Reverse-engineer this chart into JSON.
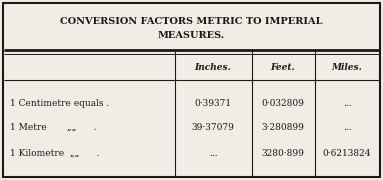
{
  "title_line1": "CONVERSION FACTORS METRIC TO IMPERIAL",
  "title_line2": "MEASURES.",
  "col_headers": [
    "Inches.",
    "Feet.",
    "Miles."
  ],
  "row_labels": [
    "1 Centimetre equals .",
    "1 Metre         „„    .",
    "1 Kilometre    „„    ."
  ],
  "table_data": [
    [
      "0·39371",
      "0·032809",
      "..."
    ],
    [
      "39·37079",
      "3·280899",
      "..."
    ],
    [
      "...",
      "3280·899",
      "0·6213824"
    ]
  ],
  "bg_color": "#f0ede6",
  "border_color": "#1a1a1a",
  "text_color": "#1a1a1a",
  "title_fontsize": 7.0,
  "header_fontsize": 6.5,
  "cell_fontsize": 6.5,
  "outer_border_lw": 1.5,
  "divider_lw": 0.8,
  "header_sep_lw1": 2.0,
  "header_sep_lw2": 0.7
}
